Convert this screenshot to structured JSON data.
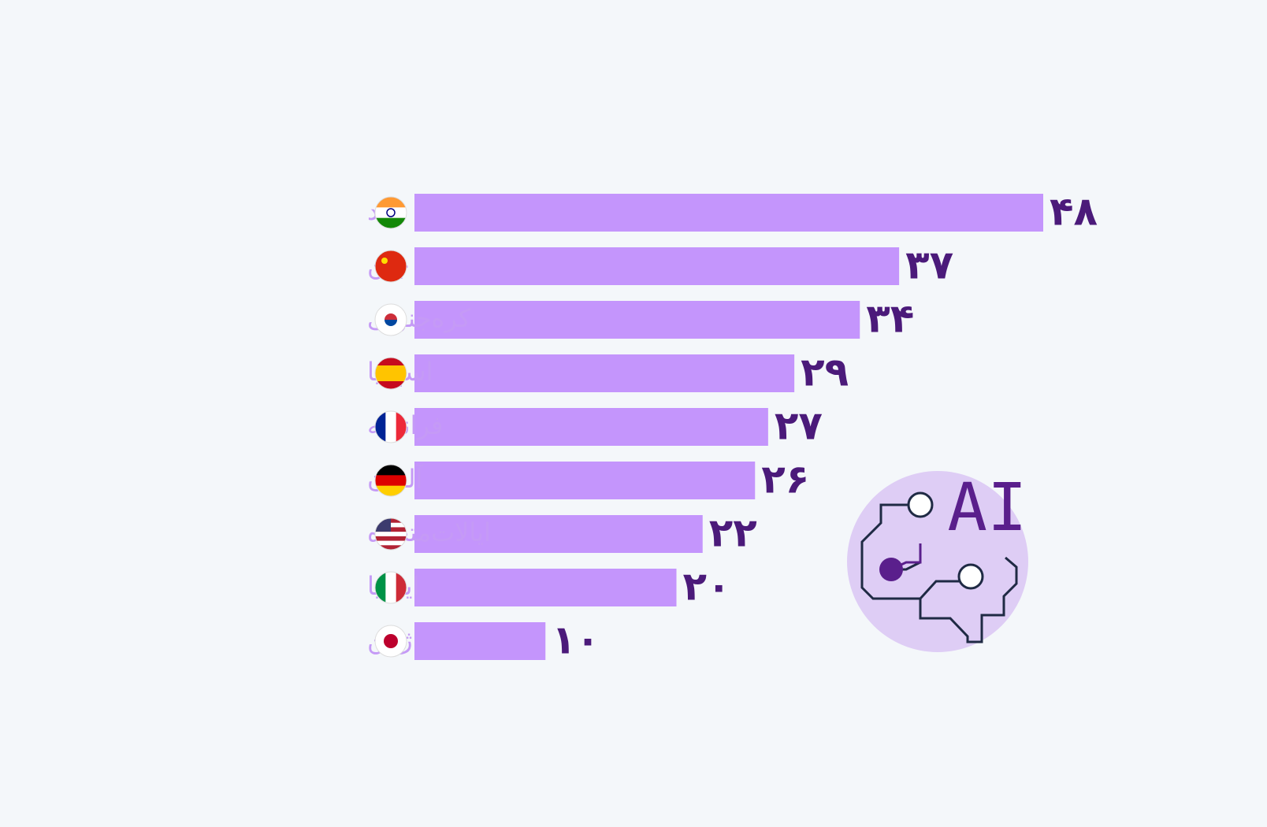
{
  "chart_data": {
    "type": "bar",
    "orientation": "horizontal",
    "categories": [
      "هند",
      "چین",
      "کره‌جنوبی",
      "اسپانیا",
      "فرانسه",
      "آلمان",
      "ایالات‌متحده",
      "ایتالیا",
      "ژاپن"
    ],
    "values": [
      48,
      37,
      34,
      29,
      27,
      26,
      22,
      20,
      10
    ],
    "value_labels": [
      "۴۸",
      "۳۷",
      "۳۴",
      "۲۹",
      "۲۷",
      "۲۶",
      "۲۲",
      "۲۰",
      "۱۰"
    ],
    "color": "#c495fc",
    "icon_text": "AI"
  }
}
